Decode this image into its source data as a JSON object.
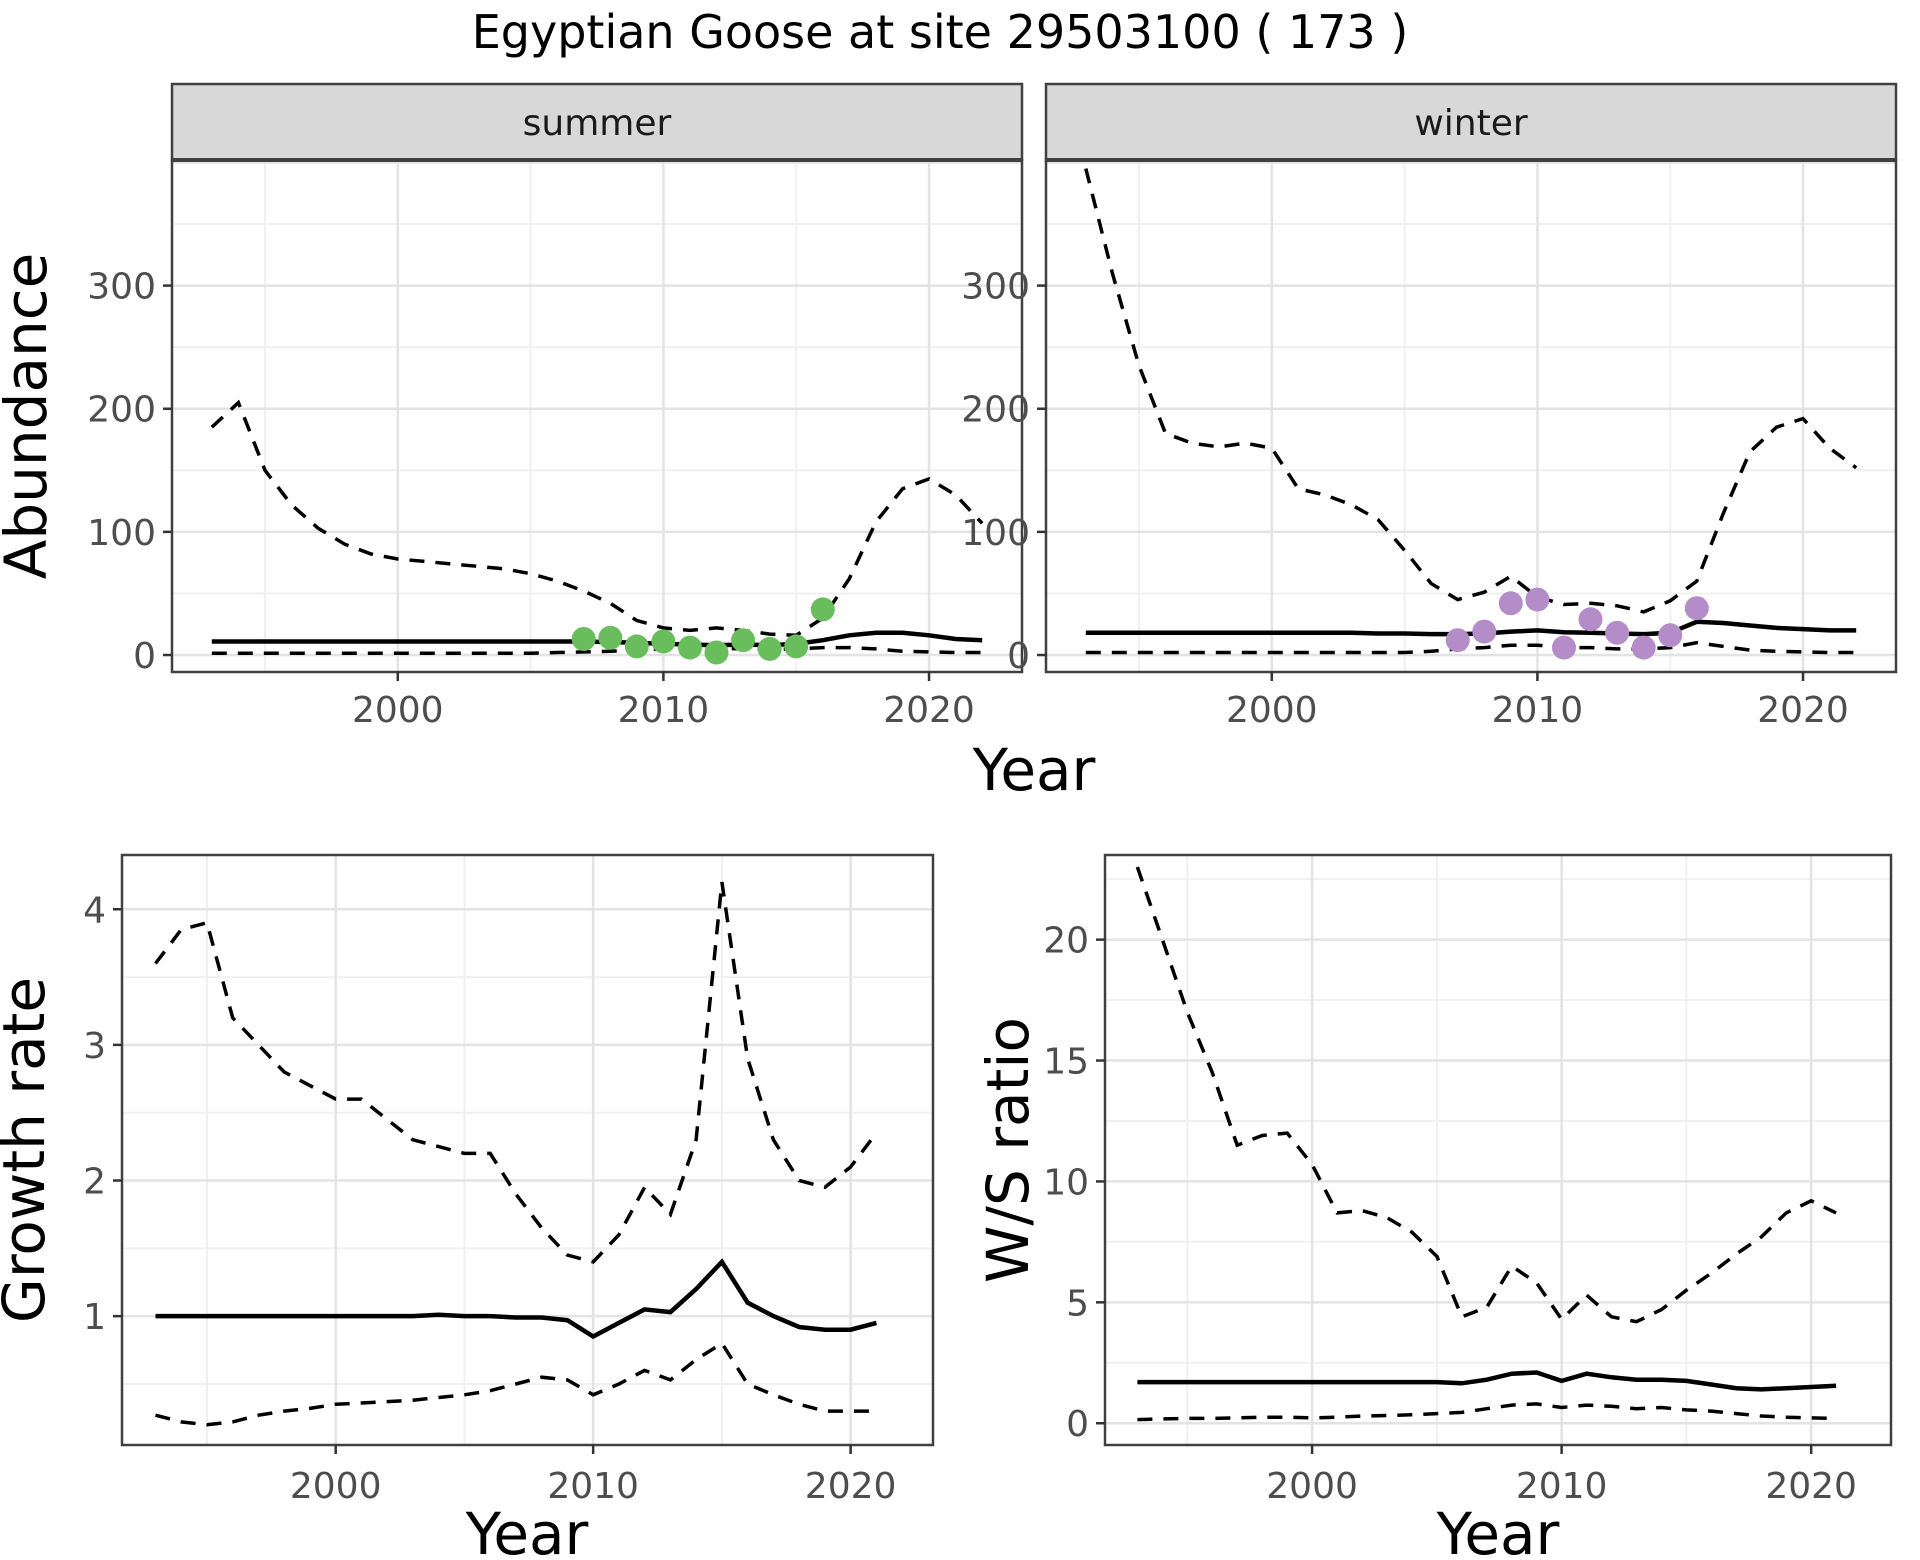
{
  "title": "Egyptian Goose at site 29503100 ( 173 )",
  "colors": {
    "summer_points": "#6ABD5C",
    "winter_points": "#B48CC8",
    "data_line": "#000000",
    "strip_bg": "#D8D8D8",
    "panel_border": "#404040",
    "grid_major": "#E3E3E3",
    "grid_minor": "#F0F0F0",
    "tick_mark": "#333333",
    "tick_text": "#4D4D4D"
  },
  "chart_data": [
    {
      "id": "abundance-summer",
      "type": "line",
      "facet_label": "summer",
      "title": "Egyptian Goose at site 29503100 ( 173 )",
      "xlabel": "Year",
      "ylabel": "Abundance",
      "legend": "none",
      "grid": true,
      "xlim": [
        1991.5,
        2023.5
      ],
      "ylim": [
        -13.8,
        402
      ],
      "xticks": [
        2000,
        2010,
        2020
      ],
      "yticks": [
        0,
        100,
        200,
        300
      ],
      "xgrid_minor": [
        1995,
        2005,
        2015
      ],
      "ygrid_major": [
        0,
        100,
        200,
        300,
        400
      ],
      "ygrid_minor": [
        50,
        150,
        250,
        350
      ],
      "x": [
        1993,
        1994,
        1995,
        1996,
        1997,
        1998,
        1999,
        2000,
        2001,
        2002,
        2003,
        2004,
        2005,
        2006,
        2007,
        2008,
        2009,
        2010,
        2011,
        2012,
        2013,
        2014,
        2015,
        2016,
        2017,
        2018,
        2019,
        2020,
        2021,
        2022
      ],
      "series": [
        {
          "name": "upper_ci",
          "style": "dashed",
          "values": [
            185,
            205,
            150,
            122,
            103,
            90,
            82,
            78,
            76,
            74,
            72,
            70,
            66,
            60,
            52,
            42,
            28,
            22,
            20,
            22,
            20,
            17,
            16,
            30,
            62,
            108,
            135,
            143,
            130,
            107
          ]
        },
        {
          "name": "fit",
          "style": "solid",
          "values": [
            11,
            11,
            11,
            11,
            11,
            11,
            11,
            11,
            11,
            11,
            11,
            11,
            11,
            11,
            11,
            10.5,
            10,
            9,
            8.5,
            8,
            8.5,
            8,
            9,
            12,
            16,
            18,
            18,
            16,
            13,
            12
          ]
        },
        {
          "name": "lower_ci",
          "style": "dashed",
          "values": [
            1.5,
            1.5,
            1.5,
            1.5,
            1.5,
            1.5,
            1.5,
            1.5,
            1.5,
            1.5,
            1.5,
            1.5,
            1.5,
            2,
            2.5,
            3,
            4,
            5,
            5,
            5.5,
            5,
            4.5,
            5,
            6,
            6,
            5,
            3,
            2.5,
            2,
            2
          ]
        }
      ],
      "points": {
        "name": "observed-summer-counts",
        "color_key": "summer_points",
        "x": [
          2007,
          2008,
          2009,
          2010,
          2011,
          2012,
          2013,
          2014,
          2015,
          2016
        ],
        "y": [
          13,
          14,
          7,
          11,
          6,
          2,
          12,
          5,
          7,
          37
        ]
      }
    },
    {
      "id": "abundance-winter",
      "type": "line",
      "facet_label": "winter",
      "xlabel": "Year",
      "ylabel": "Abundance",
      "legend": "none",
      "grid": true,
      "xlim": [
        1991.5,
        2023.5
      ],
      "ylim": [
        -13.8,
        402
      ],
      "xticks": [
        2000,
        2010,
        2020
      ],
      "yticks": [
        0,
        100,
        200,
        300
      ],
      "xgrid_minor": [
        1995,
        2005,
        2015
      ],
      "ygrid_major": [
        0,
        100,
        200,
        300,
        400
      ],
      "ygrid_minor": [
        50,
        150,
        250,
        350
      ],
      "x": [
        1993,
        1994,
        1995,
        1996,
        1997,
        1998,
        1999,
        2000,
        2001,
        2002,
        2003,
        2004,
        2005,
        2006,
        2007,
        2008,
        2009,
        2010,
        2011,
        2012,
        2013,
        2014,
        2015,
        2016,
        2017,
        2018,
        2019,
        2020,
        2021,
        2022
      ],
      "series": [
        {
          "name": "upper_ci",
          "style": "dashed",
          "values": [
            395,
            310,
            235,
            180,
            172,
            169,
            172,
            168,
            135,
            130,
            122,
            110,
            85,
            58,
            45,
            51,
            64,
            47,
            41,
            42,
            40,
            35,
            44,
            60,
            115,
            165,
            185,
            192,
            168,
            152
          ]
        },
        {
          "name": "fit",
          "style": "solid",
          "values": [
            18,
            18,
            18,
            18,
            18,
            18,
            18,
            18,
            18,
            18,
            18,
            17.5,
            17.5,
            17,
            17,
            17.5,
            19,
            20,
            18.5,
            18,
            17.5,
            17,
            18,
            27,
            26,
            24,
            22,
            21,
            20,
            20
          ]
        },
        {
          "name": "lower_ci",
          "style": "dashed",
          "values": [
            2,
            2,
            2,
            2,
            2,
            2,
            2,
            2,
            2,
            2,
            2,
            2,
            2,
            3,
            5,
            6,
            8,
            8,
            6,
            6,
            5,
            5,
            6,
            10,
            7,
            4,
            3,
            2.5,
            2,
            2
          ]
        }
      ],
      "points": {
        "name": "observed-winter-counts",
        "color_key": "winter_points",
        "x": [
          2007,
          2008,
          2009,
          2010,
          2011,
          2012,
          2013,
          2014,
          2015,
          2016
        ],
        "y": [
          12,
          19,
          42,
          45,
          6,
          29,
          18,
          6,
          16,
          38
        ]
      }
    },
    {
      "id": "growth-rate",
      "type": "line",
      "xlabel": "Year",
      "ylabel": "Growth rate",
      "legend": "none",
      "grid": true,
      "xlim": [
        1991.7,
        2023.2
      ],
      "ylim": [
        0.05,
        4.4
      ],
      "xticks": [
        2000,
        2010,
        2020
      ],
      "yticks": [
        1,
        2,
        3,
        4
      ],
      "xgrid_minor": [
        1995,
        2005,
        2015
      ],
      "ygrid_major": [
        1,
        2,
        3,
        4
      ],
      "ygrid_minor": [
        0.5,
        1.5,
        2.5,
        3.5
      ],
      "x": [
        1993,
        1994,
        1995,
        1996,
        1997,
        1998,
        1999,
        2000,
        2001,
        2002,
        2003,
        2004,
        2005,
        2006,
        2007,
        2008,
        2009,
        2010,
        2011,
        2012,
        2013,
        2014,
        2015,
        2016,
        2017,
        2018,
        2019,
        2020,
        2021
      ],
      "series": [
        {
          "name": "upper_ci",
          "style": "dashed",
          "values": [
            3.6,
            3.85,
            3.9,
            3.2,
            3.0,
            2.8,
            2.7,
            2.6,
            2.6,
            2.45,
            2.3,
            2.25,
            2.2,
            2.2,
            1.9,
            1.65,
            1.45,
            1.4,
            1.6,
            1.95,
            1.75,
            2.3,
            4.2,
            2.9,
            2.3,
            2.0,
            1.95,
            2.1,
            2.35
          ]
        },
        {
          "name": "fit",
          "style": "solid",
          "values": [
            1,
            1,
            1,
            1,
            1,
            1,
            1,
            1,
            1,
            1,
            1,
            1.01,
            1,
            1,
            0.99,
            0.99,
            0.97,
            0.85,
            0.95,
            1.05,
            1.03,
            1.2,
            1.4,
            1.1,
            1,
            0.92,
            0.9,
            0.9,
            0.95
          ]
        },
        {
          "name": "lower_ci",
          "style": "dashed",
          "values": [
            0.27,
            0.22,
            0.2,
            0.22,
            0.27,
            0.3,
            0.32,
            0.35,
            0.36,
            0.37,
            0.38,
            0.4,
            0.42,
            0.45,
            0.5,
            0.55,
            0.53,
            0.42,
            0.5,
            0.6,
            0.53,
            0.68,
            0.8,
            0.5,
            0.42,
            0.35,
            0.3,
            0.3,
            0.3
          ]
        }
      ]
    },
    {
      "id": "ws-ratio",
      "type": "line",
      "xlabel": "Year",
      "ylabel": "W/S ratio",
      "legend": "none",
      "grid": true,
      "xlim": [
        1991.7,
        2023.2
      ],
      "ylim": [
        -0.9,
        23.5
      ],
      "xticks": [
        2000,
        2010,
        2020
      ],
      "yticks": [
        0,
        5,
        10,
        15,
        20
      ],
      "xgrid_minor": [
        1995,
        2005,
        2015
      ],
      "ygrid_major": [
        0,
        5,
        10,
        15,
        20
      ],
      "ygrid_minor": [
        2.5,
        7.5,
        12.5,
        17.5,
        22.5
      ],
      "x": [
        1993,
        1994,
        1995,
        1996,
        1997,
        1998,
        1999,
        2000,
        2001,
        2002,
        2003,
        2004,
        2005,
        2006,
        2007,
        2008,
        2009,
        2010,
        2011,
        2012,
        2013,
        2014,
        2015,
        2016,
        2017,
        2018,
        2019,
        2020,
        2021
      ],
      "series": [
        {
          "name": "upper_ci",
          "style": "dashed",
          "values": [
            23,
            20,
            17,
            14.5,
            11.5,
            11.9,
            12,
            10.7,
            8.7,
            8.8,
            8.5,
            7.9,
            6.9,
            4.4,
            4.8,
            6.5,
            5.8,
            4.3,
            5.3,
            4.4,
            4.2,
            4.7,
            5.5,
            6.2,
            7.0,
            7.7,
            8.7,
            9.2,
            8.7
          ]
        },
        {
          "name": "fit",
          "style": "solid",
          "values": [
            1.7,
            1.7,
            1.7,
            1.7,
            1.7,
            1.7,
            1.7,
            1.7,
            1.7,
            1.7,
            1.7,
            1.7,
            1.7,
            1.65,
            1.8,
            2.05,
            2.1,
            1.75,
            2.05,
            1.9,
            1.8,
            1.8,
            1.75,
            1.6,
            1.45,
            1.4,
            1.45,
            1.5,
            1.55
          ]
        },
        {
          "name": "lower_ci",
          "style": "dashed",
          "values": [
            0.15,
            0.18,
            0.2,
            0.2,
            0.22,
            0.25,
            0.25,
            0.22,
            0.25,
            0.3,
            0.32,
            0.35,
            0.4,
            0.45,
            0.6,
            0.75,
            0.8,
            0.65,
            0.75,
            0.7,
            0.6,
            0.65,
            0.55,
            0.5,
            0.4,
            0.3,
            0.25,
            0.22,
            0.2
          ]
        }
      ]
    }
  ]
}
